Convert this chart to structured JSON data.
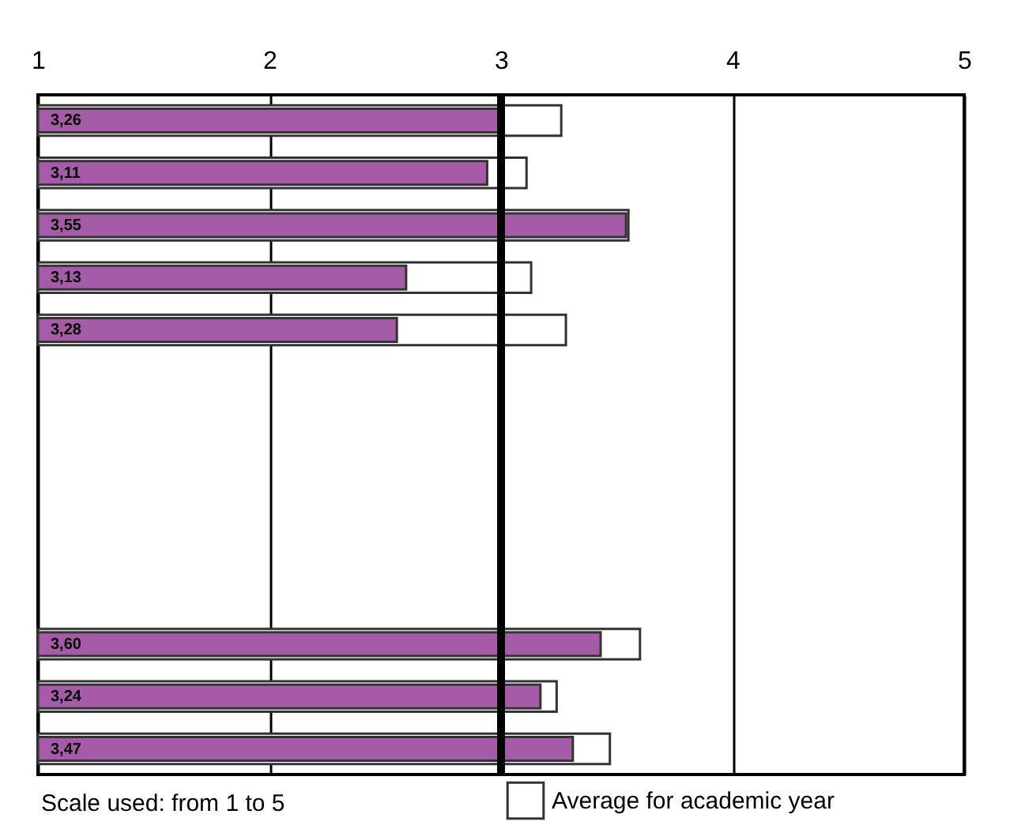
{
  "chart_data": {
    "type": "bar",
    "orientation": "horizontal",
    "categories": [
      null,
      null,
      null,
      null,
      null,
      null,
      null,
      null,
      null,
      null,
      null,
      null,
      null
    ],
    "series": [
      {
        "name": "Average for academic year",
        "color": "#ffffff",
        "values": [
          3.26,
          3.11,
          3.55,
          3.13,
          3.28,
          null,
          null,
          null,
          null,
          null,
          3.6,
          3.24,
          3.47
        ],
        "value_labels": [
          "3,26",
          "3,11",
          "3,55",
          "3,13",
          "3,28",
          null,
          null,
          null,
          null,
          null,
          "3,60",
          "3,24",
          "3,47"
        ]
      },
      {
        "color": "#a65ba8",
        "values": [
          2.99,
          2.94,
          3.54,
          2.59,
          2.55,
          null,
          null,
          null,
          null,
          null,
          3.43,
          3.17,
          3.31
        ]
      }
    ],
    "xlim": [
      1,
      5
    ],
    "xticks": [
      1,
      2,
      3,
      4,
      5
    ],
    "grid": "x",
    "legend": "bottom",
    "ref_lines": [
      {
        "axis": "x",
        "value": 3,
        "color": "#000000"
      }
    ],
    "annotations": [
      "Scale used: from 1 to 5"
    ]
  }
}
